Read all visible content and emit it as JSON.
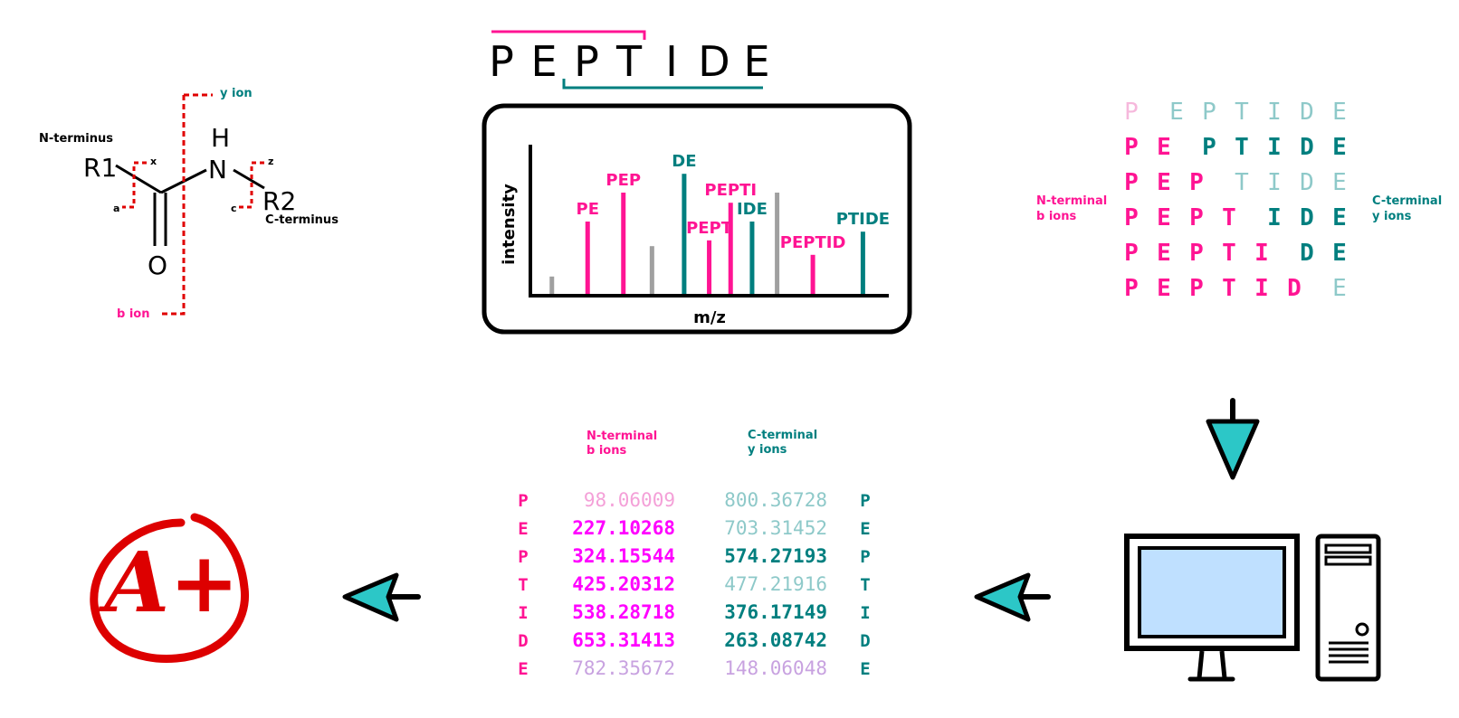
{
  "colors": {
    "pink": "#ff1493",
    "teal": "#007f7f",
    "gray": "#a0a0a0",
    "red": "#e00000",
    "cyan": "#2cc7c7",
    "screen": "#bfe0ff",
    "magenta": "#ff00ff",
    "light_pink": "#f4a0d8",
    "light_teal": "#8ec9c9",
    "lavender": "#c8a2e0"
  },
  "structure": {
    "r1": "R1",
    "r2": "R2",
    "o": "O",
    "n": "N",
    "h": "H",
    "n_terminus": "N-terminus",
    "c_terminus": "C-terminus",
    "y_ion": "y ion",
    "b_ion": "b ion",
    "x": "x",
    "z": "z",
    "a": "a",
    "c": "c"
  },
  "peptide_title": [
    "P",
    "E",
    "P",
    "T",
    "I",
    "D",
    "E"
  ],
  "chart_data": {
    "type": "bar",
    "xlabel": "m/z",
    "ylabel": "intensity",
    "bars": [
      {
        "label": "",
        "x": 0.05,
        "h": 0.12,
        "series": "other"
      },
      {
        "label": "PE",
        "x": 0.15,
        "h": 0.5,
        "series": "b"
      },
      {
        "label": "PEP",
        "x": 0.25,
        "h": 0.7,
        "series": "b"
      },
      {
        "label": "",
        "x": 0.33,
        "h": 0.33,
        "series": "other"
      },
      {
        "label": "DE",
        "x": 0.42,
        "h": 0.83,
        "series": "y"
      },
      {
        "label": "PEPT",
        "x": 0.49,
        "h": 0.37,
        "series": "b"
      },
      {
        "label": "PEPTI",
        "x": 0.55,
        "h": 0.63,
        "series": "b"
      },
      {
        "label": "IDE",
        "x": 0.61,
        "h": 0.5,
        "series": "y"
      },
      {
        "label": "",
        "x": 0.68,
        "h": 0.7,
        "series": "other"
      },
      {
        "label": "PEPTID",
        "x": 0.78,
        "h": 0.27,
        "series": "b"
      },
      {
        "label": "PTIDE",
        "x": 0.92,
        "h": 0.43,
        "series": "y"
      }
    ]
  },
  "ladder": {
    "letters": [
      "P",
      "E",
      "P",
      "T",
      "I",
      "D",
      "E"
    ],
    "split_after": [
      1,
      2,
      3,
      4,
      5,
      6
    ],
    "n_label": [
      "N-terminal",
      "b ions"
    ],
    "c_label": [
      "C-terminal",
      "y ions"
    ]
  },
  "table": {
    "n_header": [
      "N-terminal",
      "b ions"
    ],
    "c_header": [
      "C-terminal",
      "y ions"
    ],
    "rows": [
      {
        "res": "P",
        "b": "98.06009",
        "y": "800.36728",
        "b_style": "light_pink",
        "y_style": "light_teal"
      },
      {
        "res": "E",
        "b": "227.10268",
        "y": "703.31452",
        "b_style": "magenta",
        "y_style": "light_teal"
      },
      {
        "res": "P",
        "b": "324.15544",
        "y": "574.27193",
        "b_style": "magenta",
        "y_style": "teal"
      },
      {
        "res": "T",
        "b": "425.20312",
        "y": "477.21916",
        "b_style": "magenta",
        "y_style": "light_teal"
      },
      {
        "res": "I",
        "b": "538.28718",
        "y": "376.17149",
        "b_style": "magenta",
        "y_style": "teal"
      },
      {
        "res": "D",
        "b": "653.31413",
        "y": "263.08742",
        "b_style": "magenta",
        "y_style": "teal"
      },
      {
        "res": "E",
        "b": "782.35672",
        "y": "148.06048",
        "b_style": "lavender",
        "y_style": "lavender"
      }
    ]
  },
  "grade": "A+",
  "icons": [
    "down-arrow-icon",
    "left-arrow-icon",
    "computer-icon",
    "grade-icon"
  ]
}
